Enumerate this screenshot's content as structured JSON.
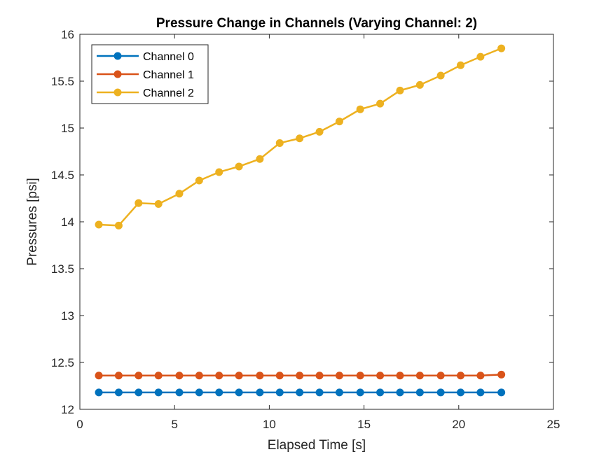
{
  "chart_data": {
    "type": "line",
    "title": "Pressure Change in Channels (Varying Channel: 2)",
    "xlabel": "Elapsed Time [s]",
    "ylabel": "Pressures [psi]",
    "xlim": [
      0,
      25
    ],
    "ylim": [
      12,
      16
    ],
    "xticks": [
      "0",
      "5",
      "10",
      "15",
      "20",
      "25"
    ],
    "yticks": [
      "12",
      "12.5",
      "13",
      "13.5",
      "14",
      "14.5",
      "15",
      "15.5",
      "16"
    ],
    "grid": false,
    "legend_position": "top-left",
    "x": [
      1.0,
      2.05,
      3.1,
      4.15,
      5.25,
      6.3,
      7.35,
      8.4,
      9.5,
      10.55,
      11.6,
      12.65,
      13.7,
      14.8,
      15.85,
      16.9,
      17.95,
      19.05,
      20.1,
      21.15,
      22.25
    ],
    "series": [
      {
        "name": "Channel 0",
        "color": "#0072BD",
        "values": [
          12.18,
          12.18,
          12.18,
          12.18,
          12.18,
          12.18,
          12.18,
          12.18,
          12.18,
          12.18,
          12.18,
          12.18,
          12.18,
          12.18,
          12.18,
          12.18,
          12.18,
          12.18,
          12.18,
          12.18,
          12.18
        ]
      },
      {
        "name": "Channel 1",
        "color": "#D95319",
        "values": [
          12.36,
          12.36,
          12.36,
          12.36,
          12.36,
          12.36,
          12.36,
          12.36,
          12.36,
          12.36,
          12.36,
          12.36,
          12.36,
          12.36,
          12.36,
          12.36,
          12.36,
          12.36,
          12.36,
          12.36,
          12.37
        ]
      },
      {
        "name": "Channel 2",
        "color": "#EDB120",
        "values": [
          13.97,
          13.96,
          14.2,
          14.19,
          14.3,
          14.44,
          14.53,
          14.59,
          14.67,
          14.84,
          14.89,
          14.96,
          15.07,
          15.2,
          15.26,
          15.4,
          15.46,
          15.56,
          15.67,
          15.76,
          15.85
        ]
      }
    ]
  }
}
